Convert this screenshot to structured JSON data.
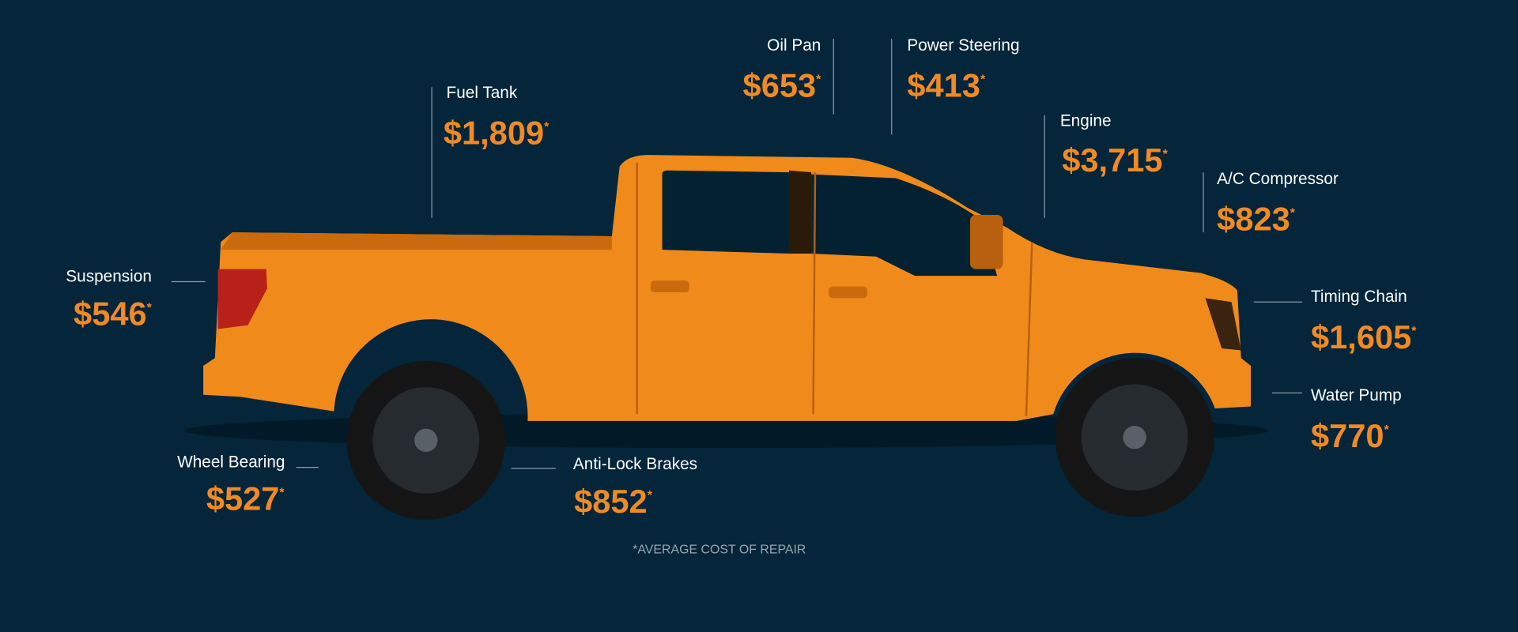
{
  "parts": [
    {
      "name": "Oil Pan",
      "price": "$653"
    },
    {
      "name": "Power Steering",
      "price": "$413"
    },
    {
      "name": "Fuel Tank",
      "price": "$1,809"
    },
    {
      "name": "Engine",
      "price": "$3,715"
    },
    {
      "name": "A/C Compressor",
      "price": "$823"
    },
    {
      "name": "Suspension",
      "price": "$546"
    },
    {
      "name": "Timing Chain",
      "price": "$1,605"
    },
    {
      "name": "Water Pump",
      "price": "$770"
    },
    {
      "name": "Wheel Bearing",
      "price": "$527"
    },
    {
      "name": "Anti-Lock Brakes",
      "price": "$852"
    }
  ],
  "footnote_mark": "*",
  "footnote": "*AVERAGE COST OF REPAIR"
}
